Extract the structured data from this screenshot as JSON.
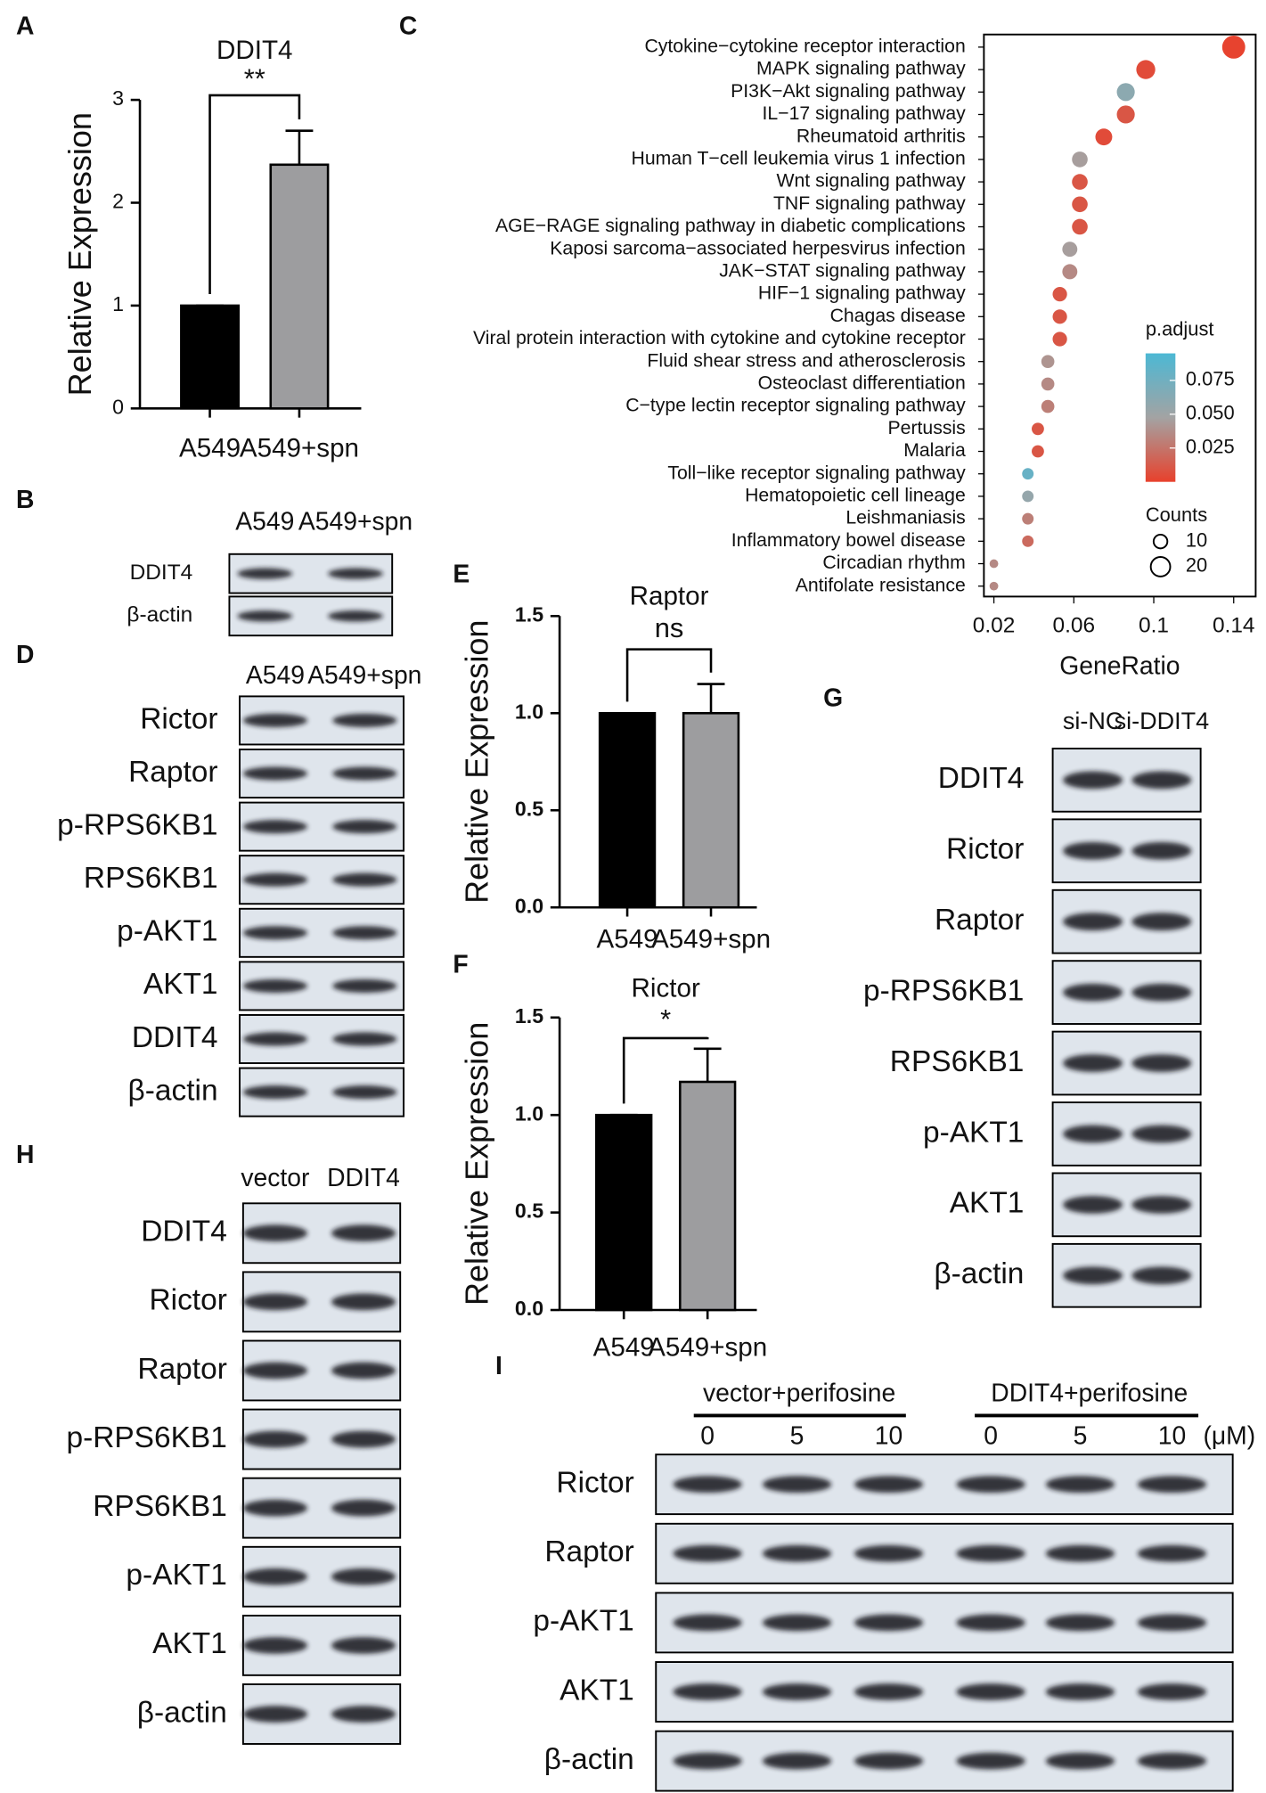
{
  "panel_labels": [
    "A",
    "B",
    "C",
    "D",
    "E",
    "F",
    "G",
    "H",
    "I"
  ],
  "chart_data": [
    {
      "type": "bar",
      "title": "DDIT4",
      "ylabel": "Relative Expression",
      "annotation": "**",
      "categories": [
        "A549",
        "A549+spn"
      ],
      "values": [
        1,
        2.37
      ],
      "errors": [
        0,
        0.33
      ],
      "colors": [
        "#000000",
        "#9d9d9f"
      ],
      "ylim": [
        0,
        3
      ],
      "yticks": [
        0,
        1,
        2,
        3
      ]
    },
    {
      "type": "scatter",
      "xlabel": "GeneRatio",
      "categories": [
        "Cytokine−cytokine receptor interaction",
        "MAPK signaling pathway",
        "PI3K−Akt signaling pathway",
        "IL−17 signaling pathway",
        "Rheumatoid arthritis",
        "Human T−cell leukemia virus 1 infection",
        "Wnt signaling pathway",
        "TNF signaling pathway",
        "AGE−RAGE signaling pathway in diabetic complications",
        "Kaposi sarcoma−associated herpesvirus infection",
        "JAK−STAT signaling pathway",
        "HIF−1 signaling pathway",
        "Chagas disease",
        "Viral protein interaction with cytokine and cytokine receptor",
        "Fluid shear stress and atherosclerosis",
        "Osteoclast differentiation",
        "C−type lectin receptor signaling pathway",
        "Pertussis",
        "Malaria",
        "Toll−like receptor signaling pathway",
        "Hematopoietic cell lineage",
        "Leishmaniasis",
        "Inflammatory bowel disease",
        "Circadian rhythm",
        "Antifolate resistance"
      ],
      "x": [
        0.14,
        0.096,
        0.086,
        0.086,
        0.075,
        0.063,
        0.063,
        0.063,
        0.063,
        0.058,
        0.058,
        0.053,
        0.053,
        0.053,
        0.047,
        0.047,
        0.047,
        0.042,
        0.042,
        0.037,
        0.037,
        0.037,
        0.037,
        0.02,
        0.02
      ],
      "sizes": [
        28,
        19,
        17,
        17,
        15,
        13,
        13,
        13,
        13,
        12,
        12,
        11,
        11,
        11,
        9,
        9,
        9,
        8,
        8,
        7,
        7,
        7,
        7,
        4,
        4
      ],
      "color_values": [
        0.001,
        0.005,
        0.06,
        0.01,
        0.005,
        0.045,
        0.01,
        0.01,
        0.01,
        0.045,
        0.035,
        0.01,
        0.01,
        0.01,
        0.04,
        0.035,
        0.03,
        0.01,
        0.01,
        0.08,
        0.055,
        0.03,
        0.02,
        0.035,
        0.035
      ],
      "xlim": [
        0.015,
        0.151
      ],
      "xticks": [
        0.02,
        0.06,
        0.1,
        0.14
      ],
      "color_title": "p.adjust",
      "color_lim": [
        0,
        0.095
      ],
      "color_ticks": [
        {
          "value": 0.075,
          "label": "0.075"
        },
        {
          "value": 0.05,
          "label": "0.050"
        },
        {
          "value": 0.025,
          "label": "0.025"
        }
      ],
      "color_scale": [
        "#e8412c",
        "#a3a3a3",
        "#4cb8d4"
      ],
      "size_title": "Counts",
      "size_ticks": [
        10,
        20
      ],
      "highlight_index": 2,
      "highlight_color": "#e0201b"
    },
    {
      "type": "bar",
      "title": "Raptor",
      "ylabel": "Relative Expression",
      "annotation": "ns",
      "categories": [
        "A549",
        "A549+spn"
      ],
      "values": [
        1,
        1.0
      ],
      "errors": [
        0,
        0.15
      ],
      "colors": [
        "#000000",
        "#9d9d9f"
      ],
      "ylim": [
        0,
        1.5
      ],
      "yticks": [
        {
          "value": 0,
          "label": "0.0"
        },
        0.5,
        {
          "value": 1,
          "label": "1.0"
        },
        1.5
      ]
    },
    {
      "type": "bar",
      "title": "Rictor",
      "ylabel": "Relative Expression",
      "annotation": "*",
      "categories": [
        "A549",
        "A549+spn"
      ],
      "values": [
        1,
        1.17
      ],
      "errors": [
        0,
        0.17
      ],
      "colors": [
        "#000000",
        "#9d9d9f"
      ],
      "ylim": [
        0,
        1.5
      ],
      "yticks": [
        {
          "value": 0,
          "label": "0.0"
        },
        0.5,
        {
          "value": 1,
          "label": "1.0"
        },
        1.5
      ]
    }
  ],
  "blots": {
    "B": {
      "columns": [
        "A549",
        "A549+spn"
      ],
      "rows": [
        "DDIT4",
        "β-actin"
      ]
    },
    "D": {
      "columns": [
        "A549",
        "A549+spn"
      ],
      "rows": [
        "Rictor",
        "Raptor",
        "p-RPS6KB1",
        "RPS6KB1",
        "p-AKT1",
        "AKT1",
        "DDIT4",
        "β-actin"
      ]
    },
    "G": {
      "columns": [
        "si-NC",
        "si-DDIT4"
      ],
      "rows": [
        "DDIT4",
        "Rictor",
        "Raptor",
        "p-RPS6KB1",
        "RPS6KB1",
        "p-AKT1",
        "AKT1",
        "β-actin"
      ]
    },
    "H": {
      "columns": [
        "vector",
        "DDIT4"
      ],
      "rows": [
        "DDIT4",
        "Rictor",
        "Raptor",
        "p-RPS6KB1",
        "RPS6KB1",
        "p-AKT1",
        "AKT1",
        "β-actin"
      ]
    },
    "I": {
      "groups": [
        "vector+perifosine",
        "DDIT4+perifosine"
      ],
      "columns": [
        "0",
        "5",
        "10",
        "0",
        "5",
        "10"
      ],
      "unit": "(μM)",
      "rows": [
        "Rictor",
        "Raptor",
        "p-AKT1",
        "AKT1",
        "β-actin"
      ]
    }
  }
}
